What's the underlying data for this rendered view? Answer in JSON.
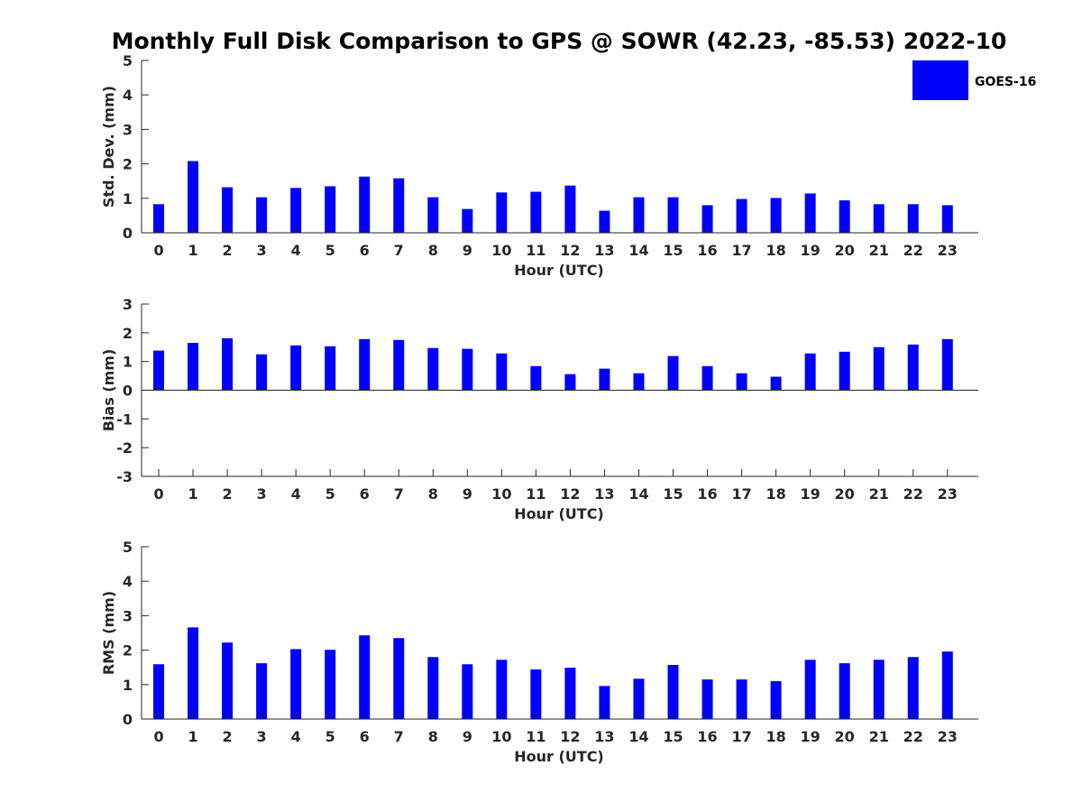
{
  "title": "Monthly Full Disk Comparison to GPS @ SOWR (42.23, -85.53) 2022-10",
  "legend": {
    "label": "GOES-16",
    "color": "#0000ff",
    "placement": "top-right"
  },
  "chart_data": [
    {
      "type": "bar",
      "xlabel": "Hour (UTC)",
      "ylabel": "Std. Dev. (mm)",
      "ylim": [
        0,
        5
      ],
      "yticks": [
        "0",
        "1",
        "2",
        "3",
        "4",
        "5"
      ],
      "categories": [
        "0",
        "1",
        "2",
        "3",
        "4",
        "5",
        "6",
        "7",
        "8",
        "9",
        "10",
        "11",
        "12",
        "13",
        "14",
        "15",
        "16",
        "17",
        "18",
        "19",
        "20",
        "21",
        "22",
        "23"
      ],
      "series": [
        {
          "name": "GOES-16",
          "color": "#0000ff",
          "values": [
            0.83,
            2.08,
            1.32,
            1.03,
            1.3,
            1.35,
            1.63,
            1.58,
            1.03,
            0.69,
            1.17,
            1.19,
            1.37,
            0.64,
            1.03,
            1.03,
            0.8,
            0.98,
            1.01,
            1.14,
            0.94,
            0.83,
            0.83,
            0.8
          ]
        }
      ]
    },
    {
      "type": "bar",
      "xlabel": "Hour (UTC)",
      "ylabel": "Bias (mm)",
      "ylim": [
        -3,
        3
      ],
      "yticks": [
        "-3",
        "-2",
        "-1",
        "0",
        "1",
        "2",
        "3"
      ],
      "categories": [
        "0",
        "1",
        "2",
        "3",
        "4",
        "5",
        "6",
        "7",
        "8",
        "9",
        "10",
        "11",
        "12",
        "13",
        "14",
        "15",
        "16",
        "17",
        "18",
        "19",
        "20",
        "21",
        "22",
        "23"
      ],
      "series": [
        {
          "name": "GOES-16",
          "color": "#0000ff",
          "values": [
            1.38,
            1.65,
            1.81,
            1.25,
            1.56,
            1.53,
            1.78,
            1.75,
            1.47,
            1.44,
            1.28,
            0.84,
            0.56,
            0.75,
            0.59,
            1.19,
            0.84,
            0.59,
            0.47,
            1.28,
            1.34,
            1.5,
            1.59,
            1.78
          ]
        }
      ]
    },
    {
      "type": "bar",
      "xlabel": "Hour (UTC)",
      "ylabel": "RMS (mm)",
      "ylim": [
        0,
        5
      ],
      "yticks": [
        "0",
        "1",
        "2",
        "3",
        "4",
        "5"
      ],
      "categories": [
        "0",
        "1",
        "2",
        "3",
        "4",
        "5",
        "6",
        "7",
        "8",
        "9",
        "10",
        "11",
        "12",
        "13",
        "14",
        "15",
        "16",
        "17",
        "18",
        "19",
        "20",
        "21",
        "22",
        "23"
      ],
      "series": [
        {
          "name": "GOES-16",
          "color": "#0000ff",
          "values": [
            1.59,
            2.66,
            2.22,
            1.62,
            2.03,
            2.01,
            2.43,
            2.35,
            1.8,
            1.59,
            1.72,
            1.44,
            1.49,
            0.96,
            1.17,
            1.57,
            1.15,
            1.15,
            1.1,
            1.72,
            1.62,
            1.72,
            1.8,
            1.96
          ]
        }
      ]
    }
  ]
}
